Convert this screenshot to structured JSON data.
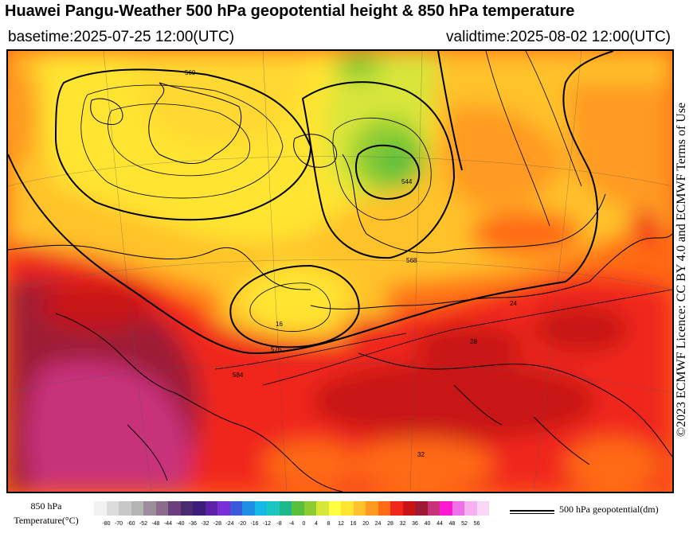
{
  "header": {
    "title": "Huawei Pangu-Weather 500 hPa geopotential height & 850 hPa temperature",
    "basetime": "basetime:2025-07-25 12:00(UTC)",
    "validtime": "validtime:2025-08-02 12:00(UTC)"
  },
  "license": "©2023 ECMWF Licence: CC BY 4.0 and ECMWF Terms of Use",
  "map": {
    "contour_labels": [
      "560",
      "544",
      "568",
      "576",
      "584"
    ],
    "temperature_labels": [
      "16",
      "24",
      "28",
      "32"
    ]
  },
  "legend": {
    "temperature_title_line1": "850 hPa",
    "temperature_title_line2": "Temperature(°C)",
    "ticks": [
      "-80",
      "-70",
      "-60",
      "-52",
      "-48",
      "-44",
      "-40",
      "-36",
      "-32",
      "-28",
      "-24",
      "-20",
      "-16",
      "-12",
      "-8",
      "-4",
      "0",
      "4",
      "8",
      "12",
      "16",
      "20",
      "24",
      "28",
      "32",
      "36",
      "40",
      "44",
      "48",
      "52",
      "56"
    ],
    "colors": [
      "#f2f2f2",
      "#dcdcdc",
      "#c8c8c8",
      "#b4b4b4",
      "#9c8c9c",
      "#8a6d8a",
      "#6b3f7b",
      "#4b2a6e",
      "#3b1e78",
      "#5c23a8",
      "#7a2fd6",
      "#3a5ad9",
      "#1f8fe6",
      "#17b7e8",
      "#19c7c0",
      "#1db88a",
      "#5bbf3e",
      "#8ccc32",
      "#d8e63a",
      "#ffff40",
      "#ffe430",
      "#ffc22a",
      "#ff9a20",
      "#ff6a14",
      "#f0281c",
      "#c81414",
      "#9e1a34",
      "#c8327a",
      "#ff1ad2",
      "#f070e6",
      "#f6b0f0",
      "#f8d8f6"
    ],
    "geopotential_label": "500 hPa geopotential(dm)"
  }
}
